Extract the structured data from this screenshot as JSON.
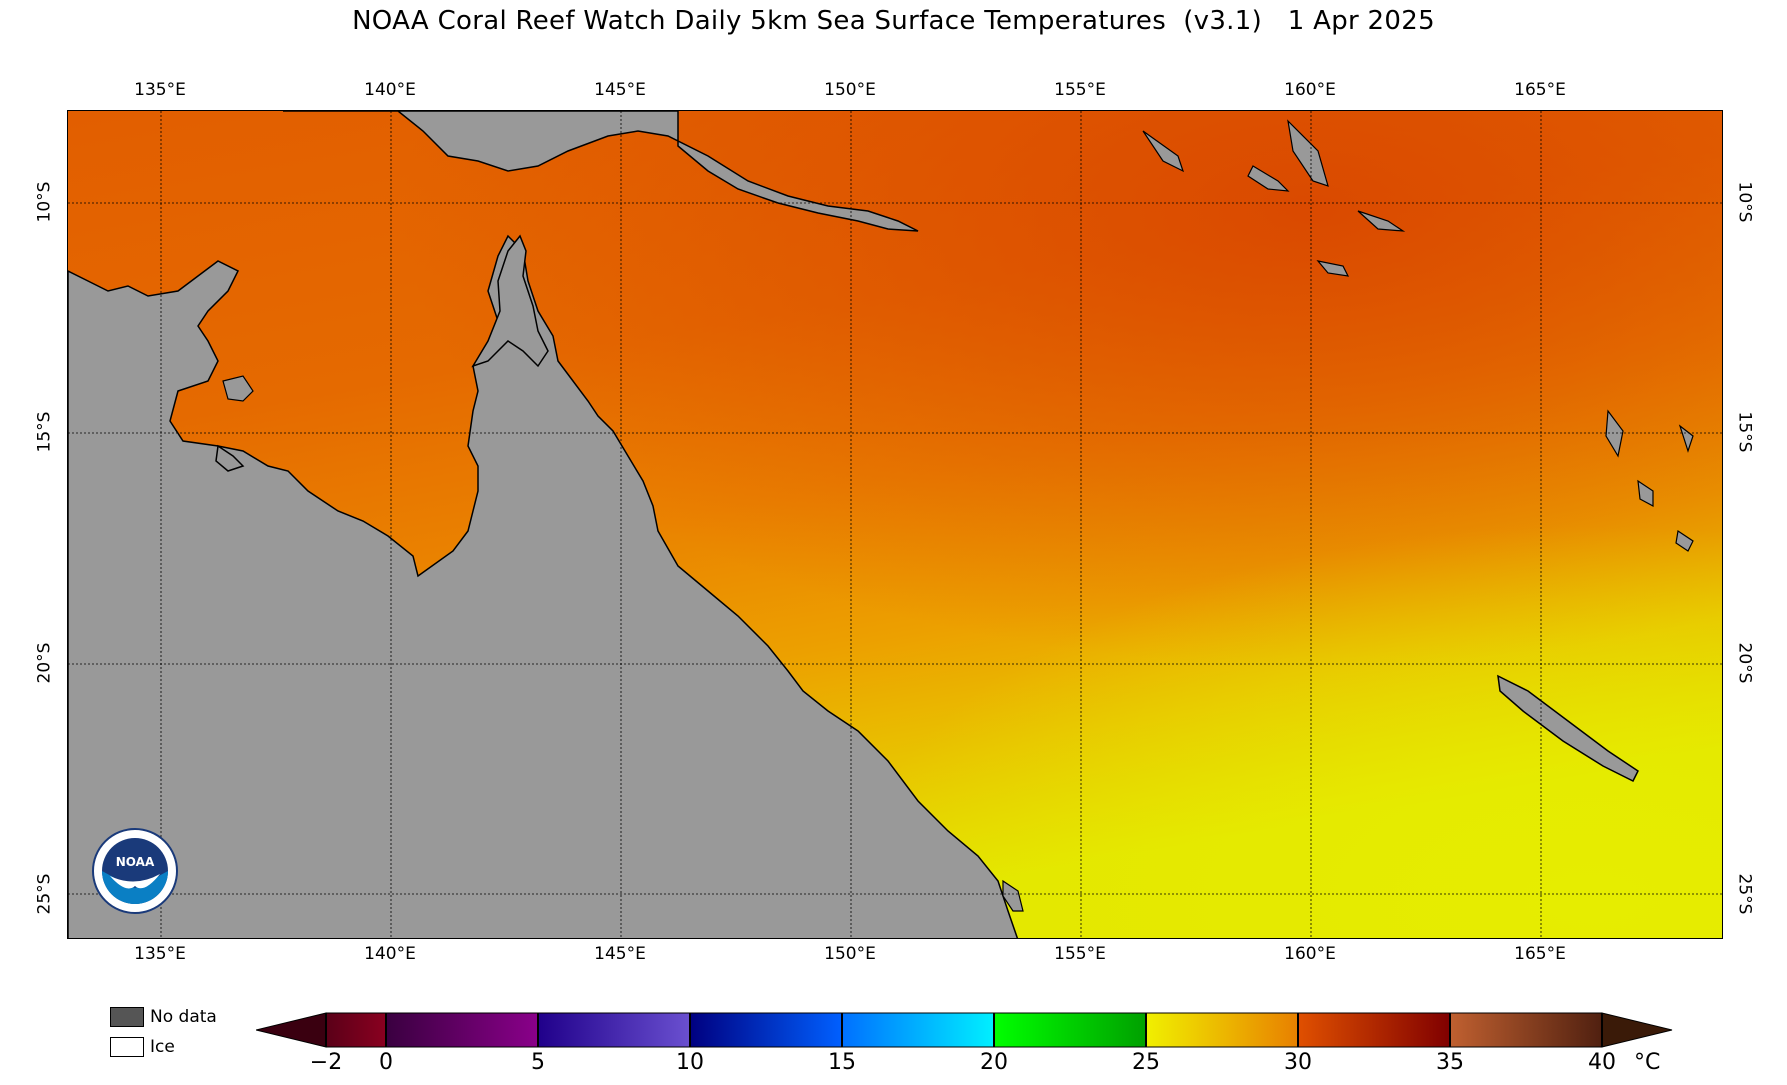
{
  "title": "NOAA Coral Reef Watch Daily 5km Sea Surface Temperatures  (v3.1)   1 Apr 2025",
  "map": {
    "longitude_labels": [
      "135°E",
      "140°E",
      "145°E",
      "150°E",
      "155°E",
      "160°E",
      "165°E"
    ],
    "latitude_labels": [
      "10°S",
      "15°S",
      "20°S",
      "25°S"
    ],
    "colors": {
      "land": "#999999",
      "ocean_warm": "#e05a00",
      "ocean_mid": "#ea8c00",
      "ocean_cool": "#e8e800",
      "coastline": "#000000",
      "grid": "#000000"
    }
  },
  "legend": {
    "no_data_label": "No data",
    "ice_label": "Ice",
    "no_data_color": "#555555",
    "ice_color": "#ffffff"
  },
  "colorbar": {
    "tick_labels": [
      "−2",
      "0",
      "5",
      "10",
      "15",
      "20",
      "25",
      "30",
      "35",
      "40"
    ],
    "unit": "°C",
    "range": [
      -2,
      40
    ]
  },
  "logo": {
    "text": "NOAA",
    "icon": "noaa-logo-icon"
  }
}
